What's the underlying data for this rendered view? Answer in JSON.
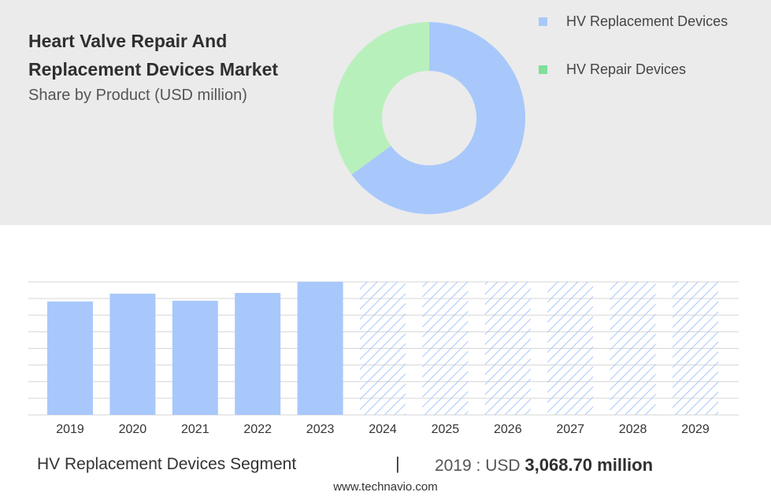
{
  "header": {
    "title": "Heart Valve Repair And Replacement Devices Market",
    "subtitle": "Share by Product (USD million)"
  },
  "legend": [
    {
      "label": "HV Replacement Devices",
      "color": "#a8c8fb"
    },
    {
      "label": "HV Repair Devices",
      "color": "#80df9a"
    }
  ],
  "chart_data": [
    {
      "type": "pie",
      "variant": "donut",
      "title": "Share by Product (USD million)",
      "slices": [
        {
          "label": "HV Replacement Devices",
          "value": 65,
          "color": "#a8c8fb"
        },
        {
          "label": "HV Repair Devices",
          "value": 35,
          "color": "#b8f0bc"
        }
      ]
    },
    {
      "type": "bar",
      "categories": [
        "2019",
        "2020",
        "2021",
        "2022",
        "2023",
        "2024",
        "2025",
        "2026",
        "2027",
        "2028",
        "2029"
      ],
      "series": [
        {
          "name": "HV Replacement Devices",
          "values": [
            3068.7,
            3280,
            3090,
            3300,
            3600,
            null,
            null,
            null,
            null,
            null,
            null
          ]
        }
      ],
      "forecast_categories": [
        "2024",
        "2025",
        "2026",
        "2027",
        "2028",
        "2029"
      ],
      "ylim": [
        0,
        3600
      ],
      "grid": true,
      "bar_color": "#a8c8fb",
      "hatch_color": "#a8c8fb"
    }
  ],
  "footer": {
    "segment": "HV Replacement Devices Segment",
    "separator": "|",
    "year_label": "2019 : USD",
    "value": "3,068.70 million"
  },
  "source": "www.technavio.com"
}
